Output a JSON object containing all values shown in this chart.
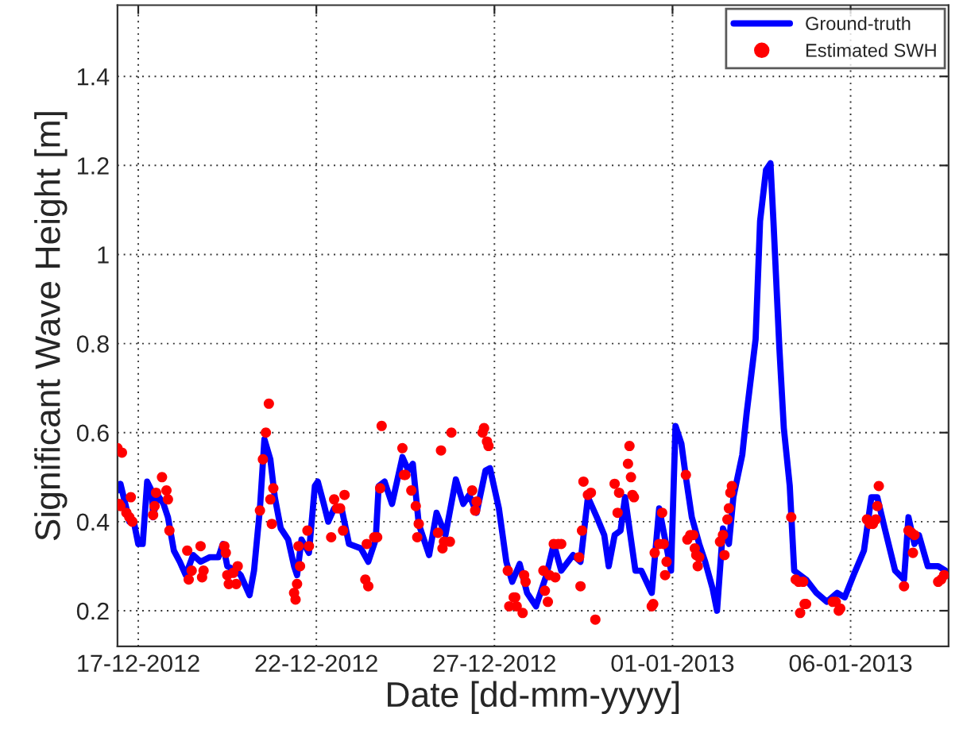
{
  "chart_data": {
    "type": "line",
    "xlabel": "Date [dd-mm-yyyy]",
    "ylabel": "Significant Wave Height [m]",
    "xlim": [
      "2012-12-16T10:00",
      "2013-01-08T18:00"
    ],
    "xticks": [
      {
        "value": "2012-12-17",
        "label": "17-12-2012"
      },
      {
        "value": "2012-12-22",
        "label": "22-12-2012"
      },
      {
        "value": "2012-12-27",
        "label": "27-12-2012"
      },
      {
        "value": "2013-01-01",
        "label": "01-01-2013"
      },
      {
        "value": "2013-01-06",
        "label": "06-01-2013"
      }
    ],
    "ylim": [
      0.12,
      1.56
    ],
    "yticks": [
      0.2,
      0.4,
      0.6,
      0.8,
      1,
      1.2,
      1.4
    ],
    "grid": true,
    "legend": "top right",
    "series": [
      {
        "name": "Ground-truth",
        "color": "#0000ff",
        "marker": "none",
        "line_style": "solid",
        "x": [
          "2012-12-16T10:00",
          "2012-12-16T12:00",
          "2012-12-16T16:00",
          "2012-12-16T18:00",
          "2012-12-16T21:00",
          "2012-12-17T00:00",
          "2012-12-17T03:00",
          "2012-12-17T06:00",
          "2012-12-17T09:00",
          "2012-12-17T10:00",
          "2012-12-17T13:00",
          "2012-12-17T17:00",
          "2012-12-17T20:00",
          "2012-12-18T00:00",
          "2012-12-18T04:00",
          "2012-12-18T08:00",
          "2012-12-18T13:00",
          "2012-12-18T18:00",
          "2012-12-19T00:00",
          "2012-12-19T06:00",
          "2012-12-19T09:00",
          "2012-12-19T12:00",
          "2012-12-19T18:00",
          "2012-12-19T21:00",
          "2012-12-20T03:00",
          "2012-12-20T06:00",
          "2012-12-20T10:00",
          "2012-12-20T13:00",
          "2012-12-20T17:00",
          "2012-12-20T20:00",
          "2012-12-21T00:00",
          "2012-12-21T05:00",
          "2012-12-21T09:00",
          "2012-12-21T11:00",
          "2012-12-21T14:00",
          "2012-12-21T19:00",
          "2012-12-21T23:00",
          "2012-12-22T01:00",
          "2012-12-22T05:00",
          "2012-12-22T08:00",
          "2012-12-22T12:00",
          "2012-12-22T17:00",
          "2012-12-22T22:00",
          "2012-12-23T06:00",
          "2012-12-23T11:00",
          "2012-12-23T16:00",
          "2012-12-23T18:00",
          "2012-12-23T22:00",
          "2012-12-24T03:00",
          "2012-12-24T10:00",
          "2012-12-24T14:00",
          "2012-12-24T17:00",
          "2012-12-24T21:00",
          "2012-12-25T04:00",
          "2012-12-25T09:00",
          "2012-12-25T15:00",
          "2012-12-25T22:00",
          "2012-12-26T03:00",
          "2012-12-26T07:00",
          "2012-12-26T12:00",
          "2012-12-26T18:00",
          "2012-12-26T21:00",
          "2012-12-27T03:00",
          "2012-12-27T08:00",
          "2012-12-27T12:00",
          "2012-12-27T17:00",
          "2012-12-27T22:00",
          "2012-12-28T04:00",
          "2012-12-28T11:00",
          "2012-12-28T16:00",
          "2012-12-28T21:00",
          "2012-12-29T05:00",
          "2012-12-29T10:00",
          "2012-12-29T15:00",
          "2012-12-29T21:00",
          "2012-12-30T02:00",
          "2012-12-30T05:00",
          "2012-12-30T09:00",
          "2012-12-30T13:00",
          "2012-12-30T16:00",
          "2012-12-30T20:00",
          "2012-12-30T23:00",
          "2012-12-31T03:00",
          "2012-12-31T10:00",
          "2012-12-31T15:00",
          "2012-12-31T19:00",
          "2012-12-31T23:00",
          "2013-01-01T02:00",
          "2013-01-01T06:00",
          "2013-01-01T09:00",
          "2013-01-01T13:00",
          "2013-01-01T18:00",
          "2013-01-01T22:00",
          "2013-01-02T03:00",
          "2013-01-02T06:00",
          "2013-01-02T10:00",
          "2013-01-02T14:00",
          "2013-01-02T17:00",
          "2013-01-02T23:00",
          "2013-01-03T02:00",
          "2013-01-03T08:00",
          "2013-01-03T11:00",
          "2013-01-03T15:00",
          "2013-01-03T18:00",
          "2013-01-03T20:00",
          "2013-01-04T00:00",
          "2013-01-04T03:00",
          "2013-01-04T07:00",
          "2013-01-04T10:00",
          "2013-01-04T18:00",
          "2013-01-05T01:00",
          "2013-01-05T08:00",
          "2013-01-05T15:00",
          "2013-01-05T20:00",
          "2013-01-06T02:00",
          "2013-01-06T09:00",
          "2013-01-06T14:00",
          "2013-01-06T18:00",
          "2013-01-06T23:00",
          "2013-01-07T06:00",
          "2013-01-07T12:00",
          "2013-01-07T15:00",
          "2013-01-07T19:00",
          "2013-01-07T22:00",
          "2013-01-08T04:00",
          "2013-01-08T11:00",
          "2013-01-08T16:00"
        ],
        "values": [
          0.47,
          0.485,
          0.43,
          0.4,
          0.4,
          0.35,
          0.35,
          0.49,
          0.47,
          0.41,
          0.46,
          0.44,
          0.41,
          0.335,
          0.31,
          0.28,
          0.325,
          0.31,
          0.32,
          0.32,
          0.35,
          0.3,
          0.29,
          0.28,
          0.235,
          0.29,
          0.43,
          0.585,
          0.54,
          0.455,
          0.385,
          0.36,
          0.3,
          0.28,
          0.36,
          0.33,
          0.48,
          0.49,
          0.44,
          0.4,
          0.43,
          0.43,
          0.35,
          0.34,
          0.31,
          0.36,
          0.48,
          0.49,
          0.44,
          0.545,
          0.515,
          0.53,
          0.395,
          0.325,
          0.42,
          0.37,
          0.495,
          0.44,
          0.46,
          0.42,
          0.515,
          0.52,
          0.43,
          0.31,
          0.265,
          0.305,
          0.24,
          0.21,
          0.28,
          0.35,
          0.29,
          0.325,
          0.31,
          0.455,
          0.41,
          0.37,
          0.3,
          0.37,
          0.38,
          0.455,
          0.36,
          0.29,
          0.29,
          0.24,
          0.43,
          0.36,
          0.29,
          0.615,
          0.575,
          0.5,
          0.41,
          0.35,
          0.31,
          0.25,
          0.2,
          0.385,
          0.35,
          0.455,
          0.55,
          0.645,
          0.81,
          1.075,
          1.19,
          1.205,
          1.075,
          0.79,
          0.61,
          0.48,
          0.29,
          0.27,
          0.24,
          0.22,
          0.24,
          0.23,
          0.28,
          0.335,
          0.455,
          0.455,
          0.385,
          0.29,
          0.27,
          0.41,
          0.35,
          0.37,
          0.3,
          0.3,
          0.29
        ]
      },
      {
        "name": "Estimated SWH",
        "type": "scatter",
        "color": "#ff0000",
        "marker": "circle",
        "x": [
          "2012-12-16T10:00",
          "2012-12-16T13:00",
          "2012-12-16T11:00",
          "2012-12-16T12:00",
          "2012-12-16T16:00",
          "2012-12-16T18:00",
          "2012-12-16T20:00",
          "2012-12-16T19:00",
          "2012-12-17T10:00",
          "2012-12-17T11:00",
          "2012-12-17T12:00",
          "2012-12-17T16:00",
          "2012-12-17T19:00",
          "2012-12-17T20:00",
          "2012-12-17T21:00",
          "2012-12-18T09:00",
          "2012-12-18T10:00",
          "2012-12-18T12:00",
          "2012-12-18T18:00",
          "2012-12-18T19:00",
          "2012-12-18T20:00",
          "2012-12-19T10:00",
          "2012-12-19T11:00",
          "2012-12-19T12:00",
          "2012-12-19T13:00",
          "2012-12-19T18:00",
          "2012-12-19T16:00",
          "2012-12-19T19:00",
          "2012-12-20T10:00",
          "2012-12-20T12:00",
          "2012-12-20T14:00",
          "2012-12-20T16:00",
          "2012-12-20T18:00",
          "2012-12-20T19:00",
          "2012-12-20T17:00",
          "2012-12-21T09:00",
          "2012-12-21T10:00",
          "2012-12-21T11:00",
          "2012-12-21T12:00",
          "2012-12-21T13:00",
          "2012-12-21T18:00",
          "2012-12-21T19:00",
          "2012-12-22T10:00",
          "2012-12-22T12:00",
          "2012-12-22T14:00",
          "2012-12-22T16:00",
          "2012-12-22T19:00",
          "2012-12-22T18:00",
          "2012-12-23T09:00",
          "2012-12-23T10:00",
          "2012-12-23T11:00",
          "2012-12-23T15:00",
          "2012-12-23T17:00",
          "2012-12-23T19:00",
          "2012-12-23T20:00",
          "2012-12-24T10:00",
          "2012-12-24T11:00",
          "2012-12-24T12:00",
          "2012-12-24T16:00",
          "2012-12-24T19:00",
          "2012-12-24T21:00",
          "2012-12-24T20:00",
          "2012-12-25T10:00",
          "2012-12-25T12:00",
          "2012-12-25T13:00",
          "2012-12-25T14:00",
          "2012-12-25T18:00",
          "2012-12-25T19:00",
          "2012-12-26T09:00",
          "2012-12-26T11:00",
          "2012-12-26T12:00",
          "2012-12-26T16:00",
          "2012-12-26T17:00",
          "2012-12-26T19:00",
          "2012-12-26T20:00",
          "2012-12-27T09:00",
          "2012-12-27T10:00",
          "2012-12-27T13:00",
          "2012-12-27T14:00",
          "2012-12-27T15:00",
          "2012-12-27T19:00",
          "2012-12-27T20:00",
          "2012-12-27T21:00",
          "2012-12-28T09:00",
          "2012-12-28T10:00",
          "2012-12-28T12:00",
          "2012-12-28T13:00",
          "2012-12-28T16:00",
          "2012-12-28T19:00",
          "2012-12-28T21:00",
          "2012-12-28T17:00",
          "2012-12-29T09:00",
          "2012-12-29T10:00",
          "2012-12-29T11:00",
          "2012-12-29T12:00",
          "2012-12-29T15:00",
          "2012-12-29T17:00",
          "2012-12-29T20:00",
          "2012-12-30T09:00",
          "2012-12-30T11:00",
          "2012-12-30T12:00",
          "2012-12-30T18:00",
          "2012-12-30T19:00",
          "2012-12-30T20:00",
          "2012-12-30T21:00",
          "2012-12-30T22:00",
          "2012-12-31T10:00",
          "2012-12-31T11:00",
          "2012-12-31T12:00",
          "2012-12-31T15:00",
          "2012-12-31T17:00",
          "2012-12-31T18:00",
          "2012-12-31T19:00",
          "2012-12-31T20:00",
          "2013-01-01T09:00",
          "2013-01-01T10:00",
          "2013-01-01T12:00",
          "2013-01-01T14:00",
          "2013-01-01T15:00",
          "2013-01-01T16:00",
          "2013-01-01T17:00",
          "2013-01-01T18:00",
          "2013-01-02T08:00",
          "2013-01-02T10:00",
          "2013-01-02T11:00",
          "2013-01-02T13:00",
          "2013-01-02T14:00",
          "2013-01-02T15:00",
          "2013-01-02T16:00",
          "2013-01-04T08:00",
          "2013-01-04T11:00",
          "2013-01-04T13:00",
          "2013-01-04T14:00",
          "2013-01-04T17:00",
          "2013-01-04T18:00",
          "2013-01-04T16:00",
          "2013-01-05T12:00",
          "2013-01-05T14:00",
          "2013-01-05T16:00",
          "2013-01-05T17:00",
          "2013-01-06T11:00",
          "2013-01-06T13:00",
          "2013-01-06T15:00",
          "2013-01-06T17:00",
          "2013-01-06T18:00",
          "2013-01-06T19:00",
          "2013-01-07T12:00",
          "2013-01-07T15:00",
          "2013-01-07T17:00",
          "2013-01-07T18:00",
          "2013-01-07T19:00",
          "2013-01-08T11:00",
          "2013-01-08T13:00",
          "2013-01-08T15:00"
        ],
        "values": [
          0.565,
          0.555,
          0.44,
          0.435,
          0.42,
          0.41,
          0.4,
          0.455,
          0.415,
          0.435,
          0.465,
          0.5,
          0.47,
          0.45,
          0.38,
          0.335,
          0.27,
          0.29,
          0.345,
          0.275,
          0.29,
          0.345,
          0.33,
          0.28,
          0.26,
          0.26,
          0.285,
          0.3,
          0.425,
          0.54,
          0.6,
          0.665,
          0.395,
          0.475,
          0.45,
          0.24,
          0.225,
          0.26,
          0.345,
          0.3,
          0.38,
          0.345,
          0.365,
          0.45,
          0.43,
          0.43,
          0.46,
          0.38,
          0.27,
          0.35,
          0.255,
          0.365,
          0.365,
          0.475,
          0.615,
          0.565,
          0.505,
          0.505,
          0.47,
          0.435,
          0.395,
          0.365,
          0.375,
          0.56,
          0.34,
          0.355,
          0.355,
          0.6,
          0.47,
          0.425,
          0.445,
          0.6,
          0.61,
          0.58,
          0.57,
          0.29,
          0.21,
          0.23,
          0.23,
          0.21,
          0.195,
          0.28,
          0.265,
          0.29,
          0.245,
          0.22,
          0.28,
          0.35,
          0.35,
          0.35,
          0.275,
          0.32,
          0.255,
          0.38,
          0.49,
          0.46,
          0.465,
          0.18,
          0.485,
          0.42,
          0.465,
          0.53,
          0.57,
          0.5,
          0.46,
          0.455,
          0.21,
          0.215,
          0.33,
          0.35,
          0.42,
          0.35,
          0.28,
          0.31,
          0.505,
          0.36,
          0.37,
          0.37,
          0.34,
          0.325,
          0.3,
          0.32,
          0.355,
          0.37,
          0.325,
          0.405,
          0.43,
          0.465,
          0.48,
          0.41,
          0.27,
          0.265,
          0.195,
          0.215,
          0.215,
          0.265,
          0.22,
          0.22,
          0.2,
          0.205,
          0.405,
          0.395,
          0.395,
          0.405,
          0.435,
          0.48,
          0.255,
          0.38,
          0.375,
          0.33,
          0.37,
          0.265,
          0.27,
          0.28
        ]
      }
    ]
  }
}
